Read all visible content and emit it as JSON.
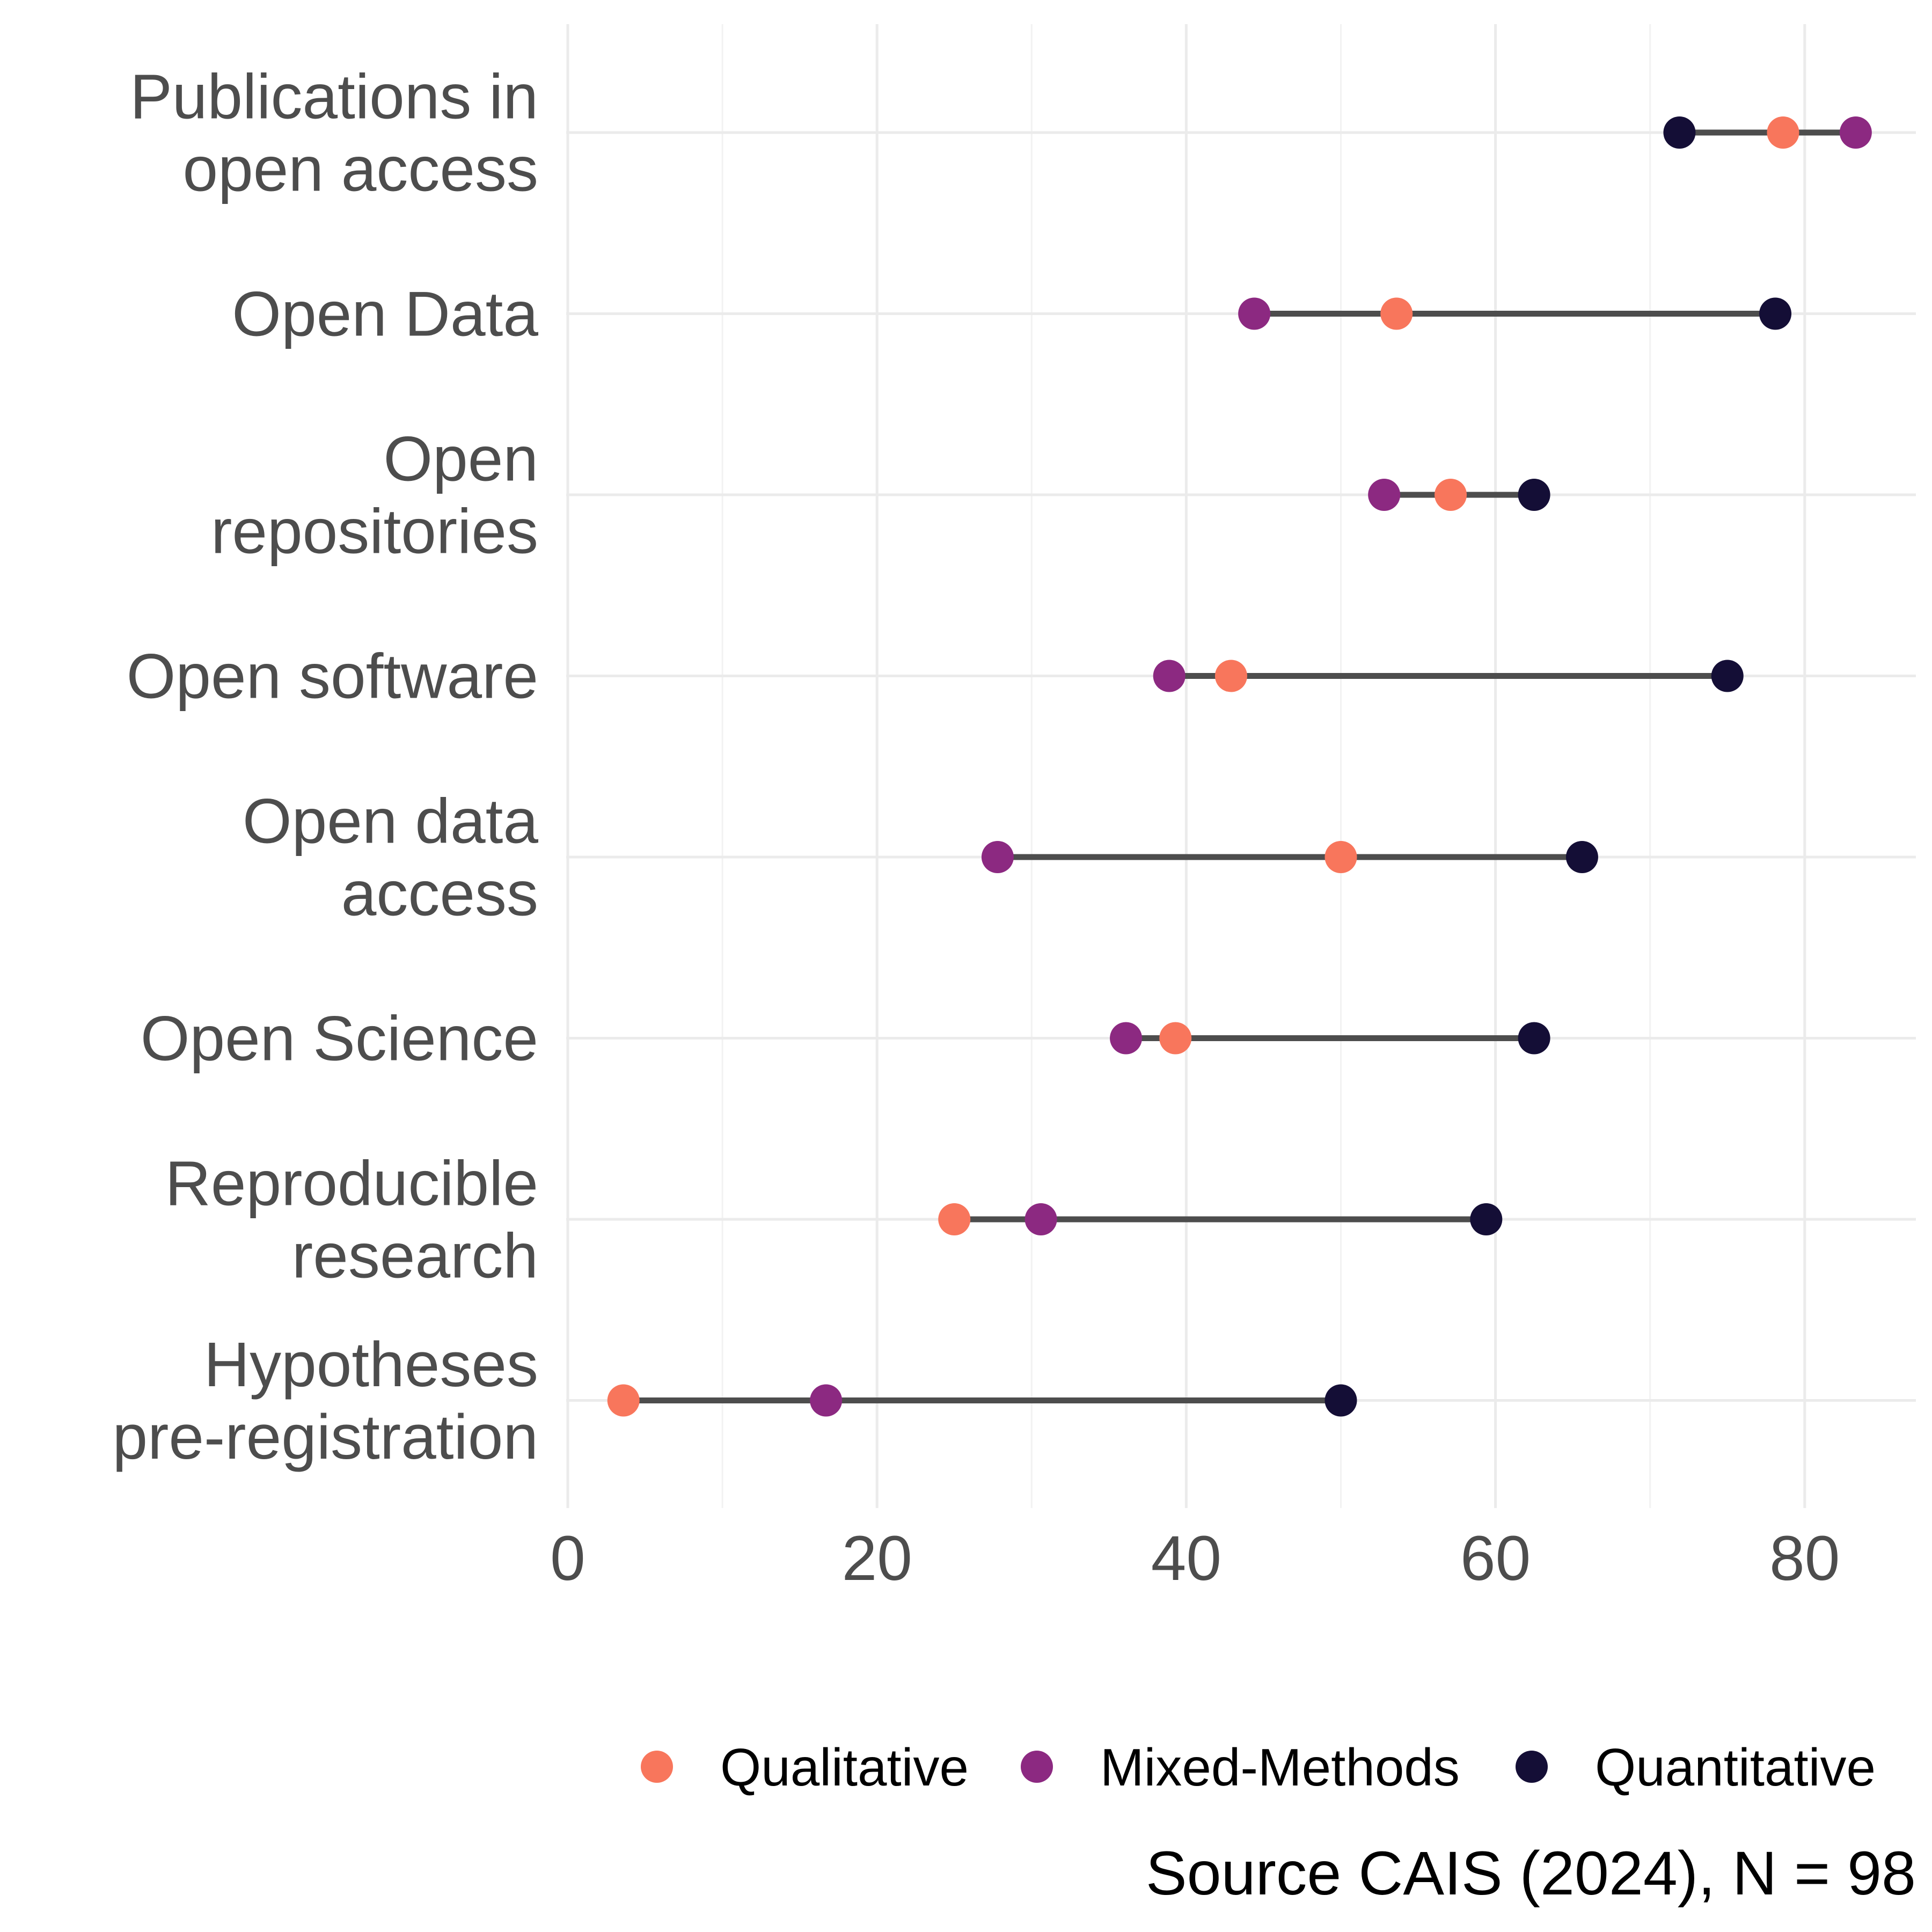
{
  "chart_data": {
    "type": "dumbbell",
    "title": "",
    "xlabel": "",
    "ylabel": "",
    "xlim": [
      0,
      87
    ],
    "x_ticks": [
      0,
      20,
      40,
      60,
      80
    ],
    "grid": true,
    "legend_position": "bottom-right",
    "categories": [
      "Publications in\nopen access",
      "Open Data",
      "Open\nrepositories",
      "Open software",
      "Open data\naccess",
      "Open Science",
      "Reproducible\nresearch",
      "Hypotheses\npre-registration"
    ],
    "series": [
      {
        "name": "Qualitative",
        "color": "#F8765C",
        "values": [
          78.6,
          53.6,
          57.1,
          42.9,
          50.0,
          39.3,
          25.0,
          3.6
        ]
      },
      {
        "name": "Mixed-Methods",
        "color": "#8C2981",
        "values": [
          83.3,
          44.4,
          52.8,
          38.9,
          27.8,
          36.1,
          30.6,
          16.7
        ]
      },
      {
        "name": "Quantitative",
        "color": "#140E36",
        "values": [
          71.9,
          78.1,
          62.5,
          75.0,
          65.6,
          62.5,
          59.4,
          50.0
        ]
      }
    ],
    "caption": "Source CAIS (2024), N = 98"
  },
  "colors": {
    "background": "#FFFFFF",
    "grid_major": "#EBEBEB",
    "grid_minor": "#F2F2F2",
    "segment": "#4D4D4D",
    "axis_text": "#4D4D4D",
    "legend_text": "#000000",
    "caption_text": "#000000"
  }
}
